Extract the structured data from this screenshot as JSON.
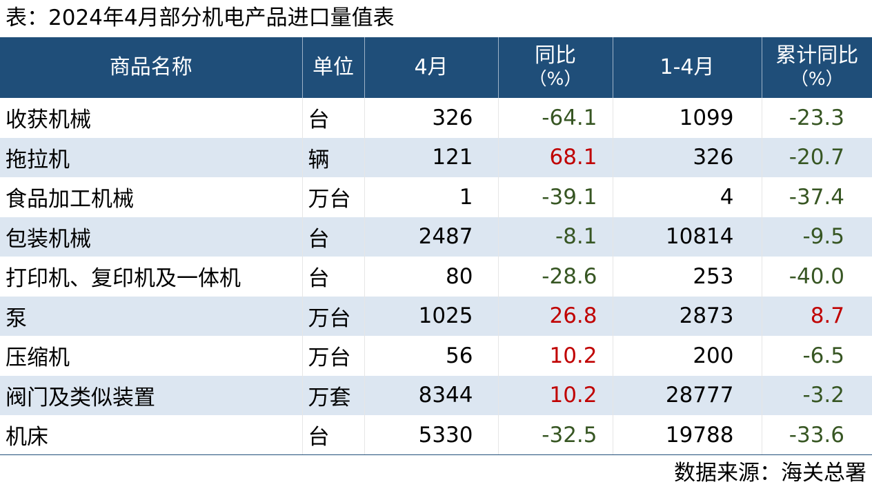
{
  "title": "表：2024年4月部分机电产品进口量值表",
  "headers": {
    "name": "商品名称",
    "unit": "单位",
    "april": "4月",
    "yoy_label": "同比",
    "yoy_unit": "（%）",
    "jan_apr": "1-4月",
    "cum_yoy_label": "累计同比",
    "cum_yoy_unit": "（%）"
  },
  "colors": {
    "header_bg": "#1f4e79",
    "alt_row_bg": "#dce6f1",
    "negative": "#375623",
    "positive": "#c00000"
  },
  "rows": [
    {
      "name": "收获机械",
      "unit": "台",
      "april": "326",
      "yoy": "-64.1",
      "jan_apr": "1099",
      "cum_yoy": "-23.3"
    },
    {
      "name": "拖拉机",
      "unit": "辆",
      "april": "121",
      "yoy": "68.1",
      "jan_apr": "326",
      "cum_yoy": "-20.7"
    },
    {
      "name": "食品加工机械",
      "unit": "万台",
      "april": "1",
      "yoy": "-39.1",
      "jan_apr": "4",
      "cum_yoy": "-37.4"
    },
    {
      "name": "包装机械",
      "unit": "台",
      "april": "2487",
      "yoy": "-8.1",
      "jan_apr": "10814",
      "cum_yoy": "-9.5"
    },
    {
      "name": "打印机、复印机及一体机",
      "unit": "台",
      "april": "80",
      "yoy": "-28.6",
      "jan_apr": "253",
      "cum_yoy": "-40.0"
    },
    {
      "name": "泵",
      "unit": "万台",
      "april": "1025",
      "yoy": "26.8",
      "jan_apr": "2873",
      "cum_yoy": "8.7"
    },
    {
      "name": "压缩机",
      "unit": "万台",
      "april": "56",
      "yoy": "10.2",
      "jan_apr": "200",
      "cum_yoy": "-6.5"
    },
    {
      "name": "阀门及类似装置",
      "unit": "万套",
      "april": "8344",
      "yoy": "10.2",
      "jan_apr": "28777",
      "cum_yoy": "-3.2"
    },
    {
      "name": "机床",
      "unit": "台",
      "april": "5330",
      "yoy": "-32.5",
      "jan_apr": "19788",
      "cum_yoy": "-33.6"
    }
  ],
  "source": "数据来源：海关总署"
}
